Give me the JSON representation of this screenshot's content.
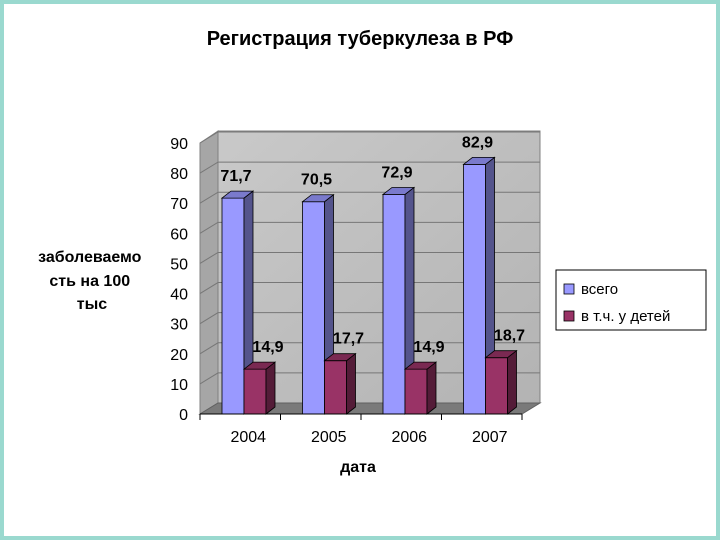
{
  "chart_data": {
    "type": "bar",
    "title": "Регистрация туберкулеза в РФ",
    "xlabel": "дата",
    "ylabel_lines": [
      "заболеваемо",
      "сть на 100",
      "тыс"
    ],
    "categories": [
      "2004",
      "2005",
      "2006",
      "2007"
    ],
    "series": [
      {
        "name": "всего",
        "values": [
          71.7,
          70.5,
          72.9,
          82.9
        ],
        "labels": [
          "71,7",
          "70,5",
          "72,9",
          "82,9"
        ],
        "color": "#9999ff"
      },
      {
        "name": "в т.ч. у детей",
        "values": [
          14.9,
          17.7,
          14.9,
          18.7
        ],
        "labels": [
          "14,9",
          "17,7",
          "14,9",
          "18,7"
        ],
        "color": "#993366"
      }
    ],
    "ylim": [
      0,
      90
    ],
    "yticks": [
      "0",
      "10",
      "20",
      "30",
      "40",
      "50",
      "60",
      "70",
      "80",
      "90"
    ],
    "grid": true,
    "legend_position": "right",
    "style": "3d-bar"
  }
}
